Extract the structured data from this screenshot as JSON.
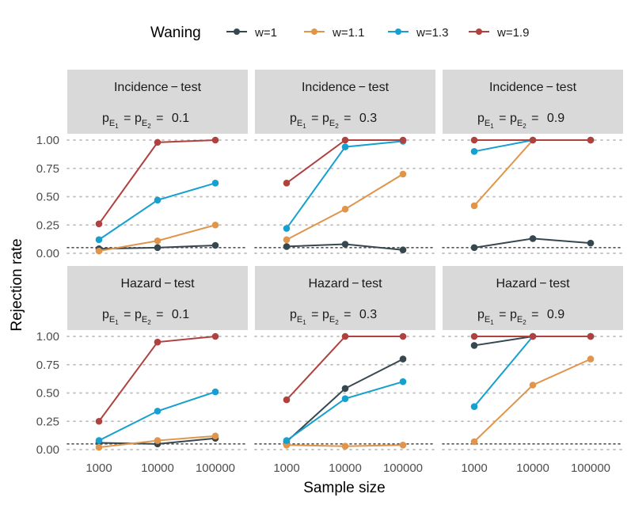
{
  "legend": {
    "title": "Waning",
    "entries": [
      {
        "label": "w=1",
        "color": "#37474f"
      },
      {
        "label": "w=1.1",
        "color": "#e0954a"
      },
      {
        "label": "w=1.3",
        "color": "#15a0cf"
      },
      {
        "label": "w=1.9",
        "color": "#b0413e"
      }
    ]
  },
  "axes": {
    "xlabel": "Sample size",
    "ylabel": "Rejection rate",
    "xticks": [
      "1000",
      "10000",
      "100000"
    ],
    "yticks": [
      "0.00",
      "0.25",
      "0.50",
      "0.75",
      "1.00"
    ]
  },
  "chart_data": {
    "type": "line",
    "xlabel": "Sample size",
    "ylabel": "Rejection rate",
    "categories": [
      "1000",
      "10000",
      "100000"
    ],
    "ylim": [
      0,
      1
    ],
    "reference_line": 0.05,
    "series_names": [
      "w=1",
      "w=1.1",
      "w=1.3",
      "w=1.9"
    ],
    "panels": [
      {
        "test": "Incidence − test",
        "p_text": "0.1",
        "series": [
          {
            "name": "w=1",
            "values": [
              0.04,
              0.05,
              0.07
            ]
          },
          {
            "name": "w=1.1",
            "values": [
              0.02,
              0.11,
              0.25
            ]
          },
          {
            "name": "w=1.3",
            "values": [
              0.12,
              0.47,
              0.62
            ]
          },
          {
            "name": "w=1.9",
            "values": [
              0.26,
              0.98,
              1.0
            ]
          }
        ]
      },
      {
        "test": "Incidence − test",
        "p_text": "0.3",
        "series": [
          {
            "name": "w=1",
            "values": [
              0.06,
              0.08,
              0.03
            ]
          },
          {
            "name": "w=1.1",
            "values": [
              0.12,
              0.39,
              0.7
            ]
          },
          {
            "name": "w=1.3",
            "values": [
              0.22,
              0.94,
              0.99
            ]
          },
          {
            "name": "w=1.9",
            "values": [
              0.62,
              1.0,
              1.0
            ]
          }
        ]
      },
      {
        "test": "Incidence − test",
        "p_text": "0.9",
        "series": [
          {
            "name": "w=1",
            "values": [
              0.05,
              0.13,
              0.09
            ]
          },
          {
            "name": "w=1.1",
            "values": [
              0.42,
              1.0,
              1.0
            ]
          },
          {
            "name": "w=1.3",
            "values": [
              0.9,
              1.0,
              1.0
            ]
          },
          {
            "name": "w=1.9",
            "values": [
              1.0,
              1.0,
              1.0
            ]
          }
        ]
      },
      {
        "test": "Hazard − test",
        "p_text": "0.1",
        "series": [
          {
            "name": "w=1",
            "values": [
              0.06,
              0.05,
              0.1
            ]
          },
          {
            "name": "w=1.1",
            "values": [
              0.02,
              0.08,
              0.12
            ]
          },
          {
            "name": "w=1.3",
            "values": [
              0.08,
              0.34,
              0.51
            ]
          },
          {
            "name": "w=1.9",
            "values": [
              0.25,
              0.95,
              1.0
            ]
          }
        ]
      },
      {
        "test": "Hazard − test",
        "p_text": "0.3",
        "series": [
          {
            "name": "w=1",
            "values": [
              0.07,
              0.54,
              0.8
            ]
          },
          {
            "name": "w=1.1",
            "values": [
              0.04,
              0.03,
              0.04
            ]
          },
          {
            "name": "w=1.3",
            "values": [
              0.08,
              0.45,
              0.6
            ]
          },
          {
            "name": "w=1.9",
            "values": [
              0.44,
              1.0,
              1.0
            ]
          }
        ]
      },
      {
        "test": "Hazard − test",
        "p_text": "0.9",
        "series": [
          {
            "name": "w=1",
            "values": [
              0.92,
              1.0,
              1.0
            ]
          },
          {
            "name": "w=1.1",
            "values": [
              0.07,
              0.57,
              0.8
            ]
          },
          {
            "name": "w=1.3",
            "values": [
              0.38,
              1.0,
              1.0
            ]
          },
          {
            "name": "w=1.9",
            "values": [
              1.0,
              1.0,
              1.0
            ]
          }
        ]
      }
    ]
  }
}
